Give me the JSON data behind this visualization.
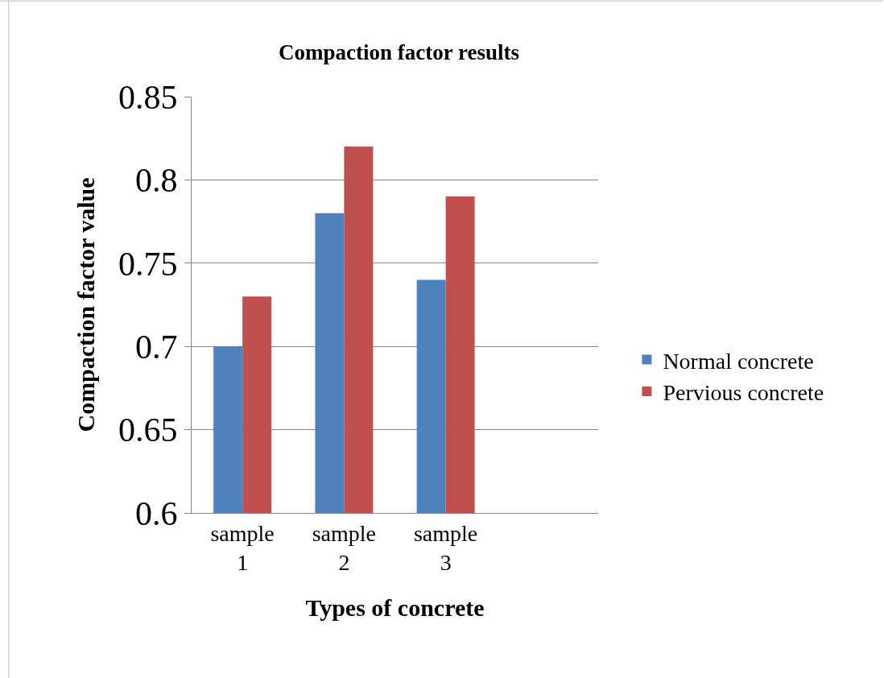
{
  "chart_data": {
    "type": "bar",
    "title": "Compaction factor results",
    "xlabel": "Types of concrete",
    "ylabel": "Compaction factor value",
    "categories": [
      "sample 1",
      "sample 2",
      "sample 3",
      null
    ],
    "series": [
      {
        "name": "Normal concrete",
        "color": "#4f81bd",
        "values": [
          0.7,
          0.78,
          0.74,
          null
        ]
      },
      {
        "name": "Pervious concrete",
        "color": "#c0504d",
        "values": [
          0.73,
          0.82,
          0.79,
          null
        ]
      }
    ],
    "ylim": [
      0.6,
      0.85
    ],
    "yticks": [
      0.6,
      0.65,
      0.7,
      0.75,
      0.8,
      0.85
    ],
    "grid": "y",
    "legend": "right"
  }
}
